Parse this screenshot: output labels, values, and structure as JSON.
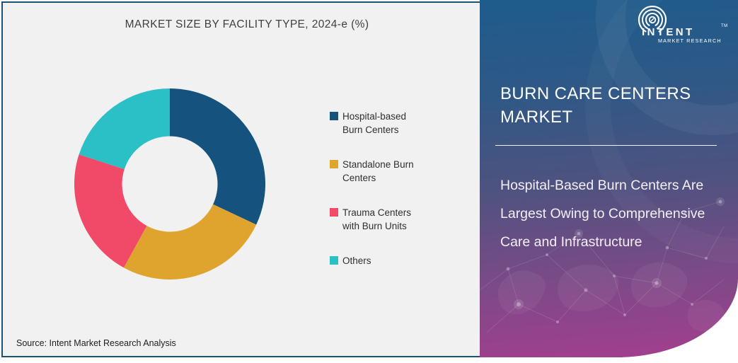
{
  "chart": {
    "title": "MARKET SIZE BY FACILITY TYPE, 2024-e (%)"
  },
  "chart_data": {
    "type": "pie",
    "subtype": "donut",
    "title": "MARKET SIZE BY FACILITY TYPE, 2024-e (%)",
    "categories": [
      "Hospital-based Burn Centers",
      "Standalone Burn Centers",
      "Trauma Centers with Burn Units",
      "Others"
    ],
    "values": [
      32,
      26,
      22,
      20
    ],
    "unit": "%",
    "colors": [
      "#15537E",
      "#DFA42D",
      "#F04A68",
      "#2BBFC6"
    ],
    "start_angle_deg": 0,
    "clockwise": true,
    "inner_radius_ratio": 0.5,
    "legend_position": "right",
    "data_labels_shown": false
  },
  "legend": {
    "items": [
      {
        "label": "Hospital-based Burn Centers"
      },
      {
        "label": "Standalone Burn Centers"
      },
      {
        "label": "Trauma Centers with Burn Units"
      },
      {
        "label": "Others"
      }
    ]
  },
  "panel": {
    "title": "BURN CARE CENTERS MARKET",
    "subtitle": "Hospital-Based Burn Centers Are Largest Owing to Comprehensive Care and Infrastructure",
    "gradient_top": "#1E5C8C",
    "gradient_bottom": "#A43E8E"
  },
  "logo": {
    "name": "INTENT",
    "tagline": "MARKET RESEARCH",
    "trademark": "TM"
  },
  "source": {
    "text": "Source: Intent Market Research Analysis"
  },
  "colors": {
    "frame_border": "#1B5175",
    "chart_background": "#F1F1F2",
    "chart_title_text": "#3F3F3F"
  }
}
